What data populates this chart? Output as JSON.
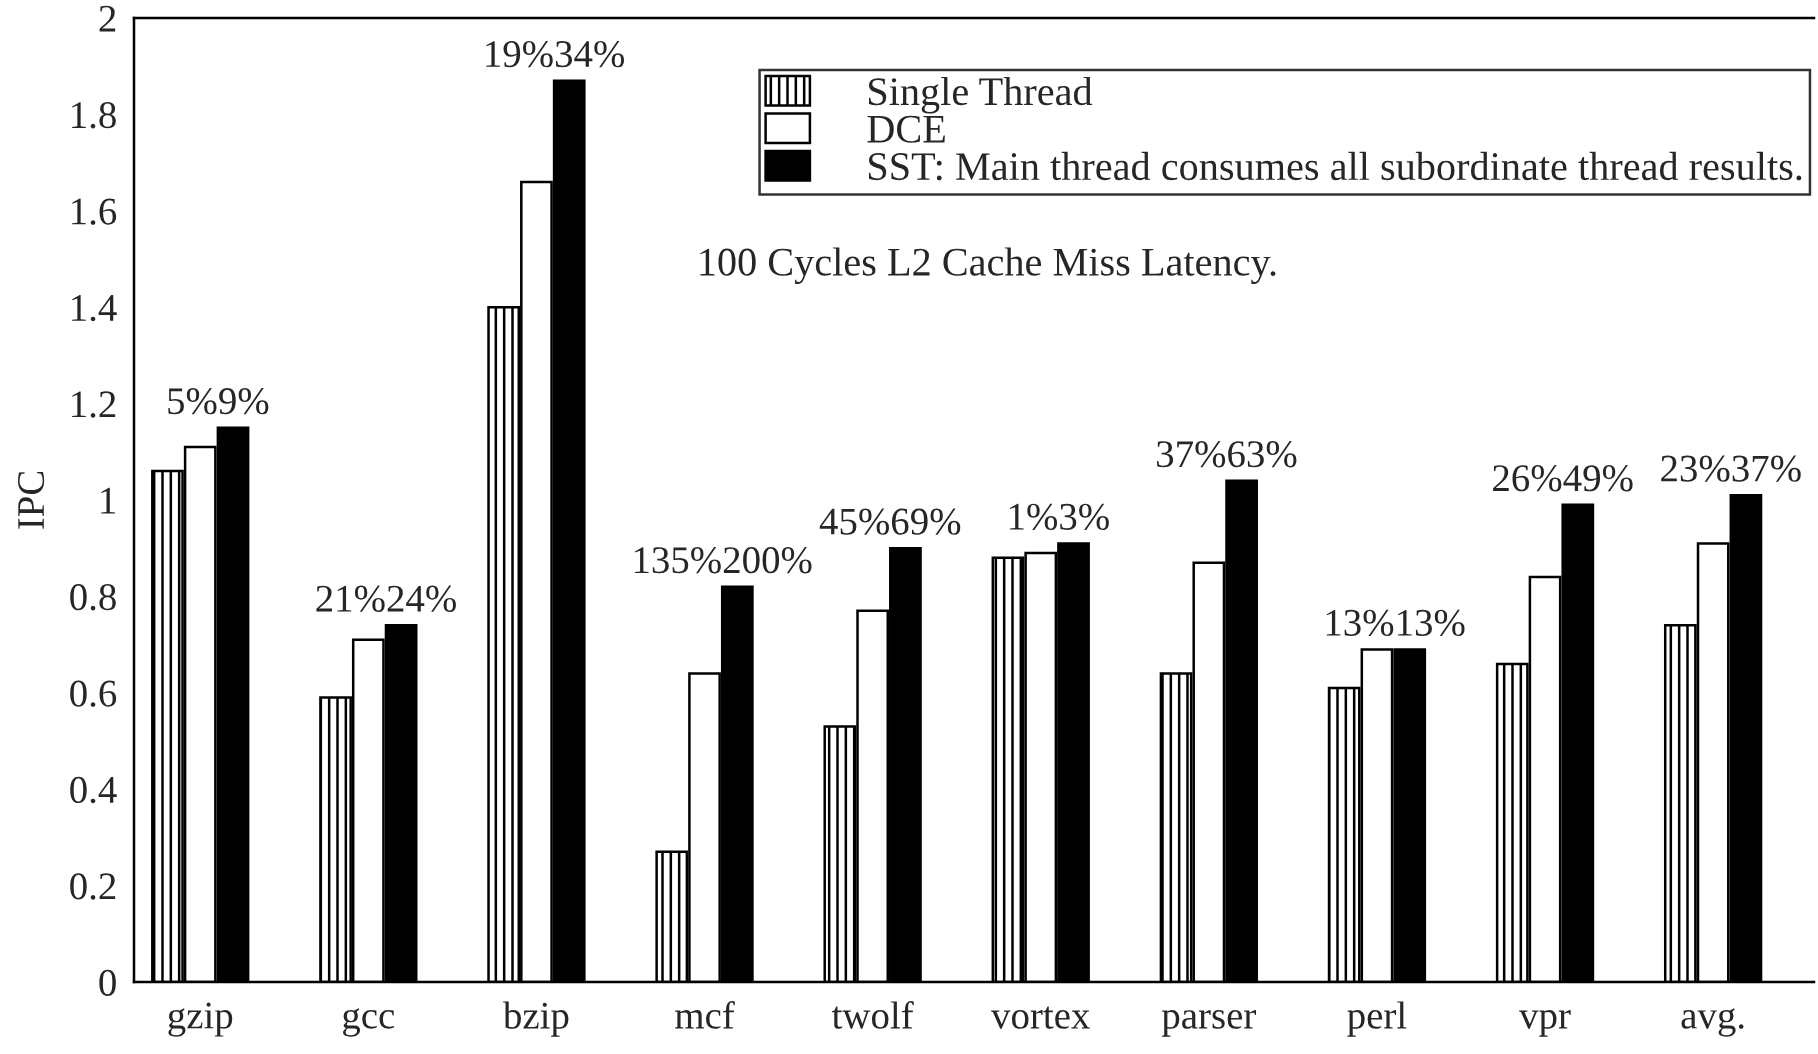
{
  "chart_data": {
    "type": "bar",
    "ylabel": "IPC",
    "categories": [
      "gzip",
      "gcc",
      "bzip",
      "mcf",
      "twolf",
      "vortex",
      "parser",
      "perl",
      "vpr",
      "avg."
    ],
    "series": [
      {
        "name": "Single Thread",
        "color": "#000000",
        "values": [
          1.06,
          0.59,
          1.4,
          0.27,
          0.53,
          0.88,
          0.64,
          0.61,
          0.66,
          0.74
        ]
      },
      {
        "name": "DCE",
        "color": "#ffffff",
        "values": [
          1.11,
          0.71,
          1.66,
          0.64,
          0.77,
          0.89,
          0.87,
          0.69,
          0.84,
          0.91
        ]
      },
      {
        "name": "SST: Main thread consumes all subordinate thread results.",
        "color": "#000000",
        "values": [
          1.15,
          0.74,
          1.87,
          0.82,
          0.9,
          0.91,
          1.04,
          0.69,
          0.99,
          1.01
        ]
      }
    ],
    "ylim": [
      0,
      2
    ],
    "yticks": [
      0,
      0.2,
      0.4,
      0.6,
      0.8,
      1,
      1.2,
      1.4,
      1.6,
      1.8,
      2
    ],
    "legend": "top right",
    "annotations": [
      "100 Cycles L2 Cache Miss Latency.",
      "5%",
      "9%",
      "21%",
      "24%",
      "19%",
      "34%",
      "135%",
      "200%",
      "45%",
      "69%",
      "1%",
      "3%",
      "37%",
      "63%",
      "13%",
      "13%",
      "26%",
      "49%",
      "23%",
      "37%"
    ]
  }
}
